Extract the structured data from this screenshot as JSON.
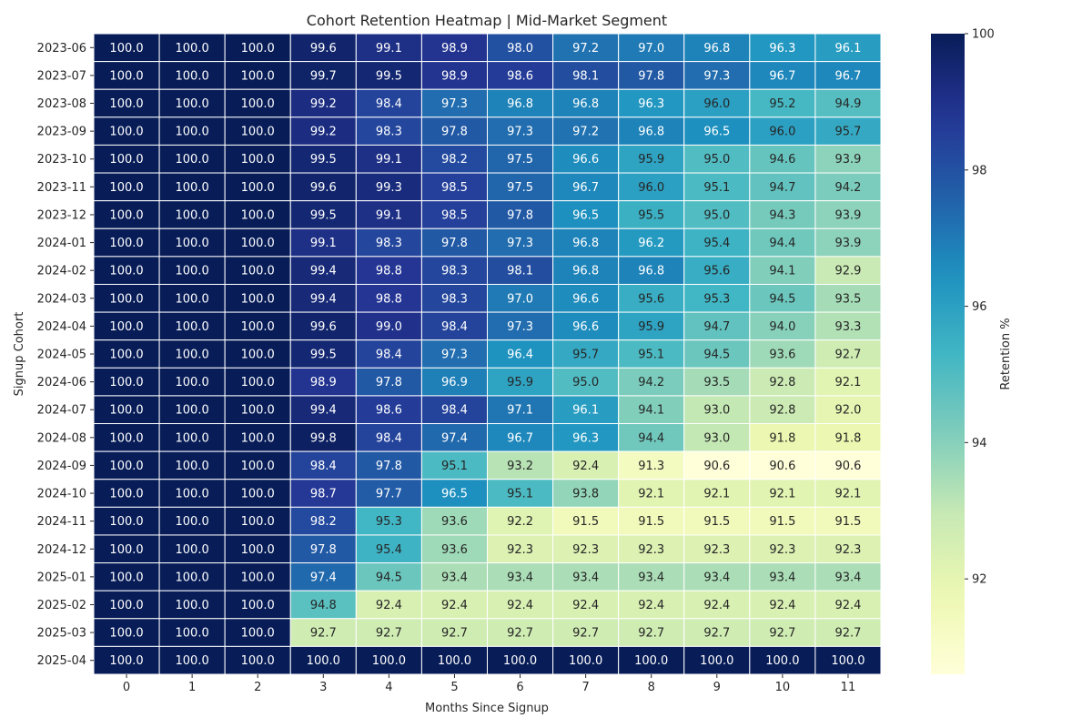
{
  "chart_data": {
    "type": "heatmap",
    "title": "Cohort Retention Heatmap | Mid-Market Segment",
    "xlabel": "Months Since Signup",
    "ylabel": "Signup Cohort",
    "colorbar_label": "Retention %",
    "colormap": "YlGnBu",
    "color_range": [
      90.6,
      100
    ],
    "colorbar_ticks": [
      92,
      94,
      96,
      98,
      100
    ],
    "x": [
      "0",
      "1",
      "2",
      "3",
      "4",
      "5",
      "6",
      "7",
      "8",
      "9",
      "10",
      "11"
    ],
    "y": [
      "2023-06",
      "2023-07",
      "2023-08",
      "2023-09",
      "2023-10",
      "2023-11",
      "2023-12",
      "2024-01",
      "2024-02",
      "2024-03",
      "2024-04",
      "2024-05",
      "2024-06",
      "2024-07",
      "2024-08",
      "2024-09",
      "2024-10",
      "2024-11",
      "2024-12",
      "2025-01",
      "2025-02",
      "2025-03",
      "2025-04"
    ],
    "values": [
      [
        100.0,
        100.0,
        100.0,
        99.6,
        99.1,
        98.9,
        98.0,
        97.2,
        97.0,
        96.8,
        96.3,
        96.1
      ],
      [
        100.0,
        100.0,
        100.0,
        99.7,
        99.5,
        98.9,
        98.6,
        98.1,
        97.8,
        97.3,
        96.7,
        96.7
      ],
      [
        100.0,
        100.0,
        100.0,
        99.2,
        98.4,
        97.3,
        96.8,
        96.8,
        96.3,
        96.0,
        95.2,
        94.9
      ],
      [
        100.0,
        100.0,
        100.0,
        99.2,
        98.3,
        97.8,
        97.3,
        97.2,
        96.8,
        96.5,
        96.0,
        95.7
      ],
      [
        100.0,
        100.0,
        100.0,
        99.5,
        99.1,
        98.2,
        97.5,
        96.6,
        95.9,
        95.0,
        94.6,
        93.9
      ],
      [
        100.0,
        100.0,
        100.0,
        99.6,
        99.3,
        98.5,
        97.5,
        96.7,
        96.0,
        95.1,
        94.7,
        94.2
      ],
      [
        100.0,
        100.0,
        100.0,
        99.5,
        99.1,
        98.5,
        97.8,
        96.5,
        95.5,
        95.0,
        94.3,
        93.9
      ],
      [
        100.0,
        100.0,
        100.0,
        99.1,
        98.3,
        97.8,
        97.3,
        96.8,
        96.2,
        95.4,
        94.4,
        93.9
      ],
      [
        100.0,
        100.0,
        100.0,
        99.4,
        98.8,
        98.3,
        98.1,
        96.8,
        96.8,
        95.6,
        94.1,
        92.9
      ],
      [
        100.0,
        100.0,
        100.0,
        99.4,
        98.8,
        98.3,
        97.0,
        96.6,
        95.6,
        95.3,
        94.5,
        93.5
      ],
      [
        100.0,
        100.0,
        100.0,
        99.6,
        99.0,
        98.4,
        97.3,
        96.6,
        95.9,
        94.7,
        94.0,
        93.3
      ],
      [
        100.0,
        100.0,
        100.0,
        99.5,
        98.4,
        97.3,
        96.4,
        95.7,
        95.1,
        94.5,
        93.6,
        92.7
      ],
      [
        100.0,
        100.0,
        100.0,
        98.9,
        97.8,
        96.9,
        95.9,
        95.0,
        94.2,
        93.5,
        92.8,
        92.1
      ],
      [
        100.0,
        100.0,
        100.0,
        99.4,
        98.6,
        98.4,
        97.1,
        96.1,
        94.1,
        93.0,
        92.8,
        92.0
      ],
      [
        100.0,
        100.0,
        100.0,
        99.8,
        98.4,
        97.4,
        96.7,
        96.3,
        94.4,
        93.0,
        91.8,
        91.8
      ],
      [
        100.0,
        100.0,
        100.0,
        98.4,
        97.8,
        95.1,
        93.2,
        92.4,
        91.3,
        90.6,
        90.6,
        90.6
      ],
      [
        100.0,
        100.0,
        100.0,
        98.7,
        97.7,
        96.5,
        95.1,
        93.8,
        92.1,
        92.1,
        92.1,
        92.1
      ],
      [
        100.0,
        100.0,
        100.0,
        98.2,
        95.3,
        93.6,
        92.2,
        91.5,
        91.5,
        91.5,
        91.5,
        91.5
      ],
      [
        100.0,
        100.0,
        100.0,
        97.8,
        95.4,
        93.6,
        92.3,
        92.3,
        92.3,
        92.3,
        92.3,
        92.3
      ],
      [
        100.0,
        100.0,
        100.0,
        97.4,
        94.5,
        93.4,
        93.4,
        93.4,
        93.4,
        93.4,
        93.4,
        93.4
      ],
      [
        100.0,
        100.0,
        100.0,
        94.8,
        92.4,
        92.4,
        92.4,
        92.4,
        92.4,
        92.4,
        92.4,
        92.4
      ],
      [
        100.0,
        100.0,
        100.0,
        92.7,
        92.7,
        92.7,
        92.7,
        92.7,
        92.7,
        92.7,
        92.7,
        92.7
      ],
      [
        100.0,
        100.0,
        100.0,
        100.0,
        100.0,
        100.0,
        100.0,
        100.0,
        100.0,
        100.0,
        100.0,
        100.0
      ]
    ],
    "value_format": "0.1f",
    "grid": false,
    "legend": "colorbar-right"
  }
}
